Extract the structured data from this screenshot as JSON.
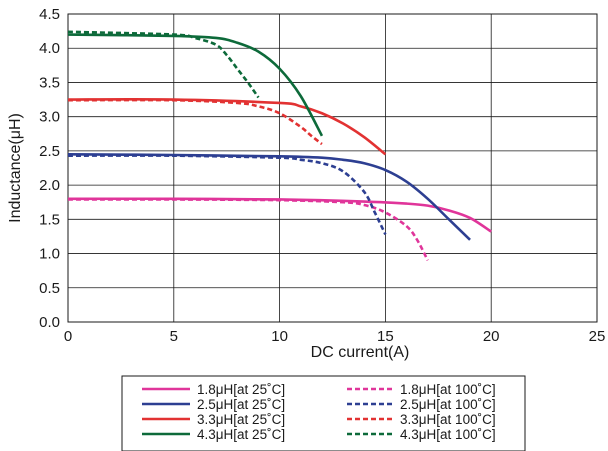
{
  "chart_data": {
    "type": "line",
    "xlabel": "DC current(A)",
    "ylabel": "Inductance(μH)",
    "xlim": [
      0,
      25
    ],
    "ylim": [
      0,
      4.5
    ],
    "xticks": [
      "0",
      "5",
      "10",
      "15",
      "20",
      "25"
    ],
    "yticks": [
      "0.0",
      "0.5",
      "1.0",
      "1.5",
      "2.0",
      "2.5",
      "3.0",
      "3.5",
      "4.0",
      "4.5"
    ],
    "grid": true,
    "legend_position": "bottom",
    "colors": {
      "pink": "#e0359a",
      "blue": "#2d3f92",
      "red": "#e23232",
      "green": "#0d6a3a"
    },
    "series": [
      {
        "name": "1.8μH[at 25˚C]",
        "color": "pink",
        "dash": false,
        "x": [
          0,
          5,
          10,
          14,
          16,
          17,
          18,
          19,
          20
        ],
        "y": [
          1.8,
          1.8,
          1.79,
          1.76,
          1.73,
          1.7,
          1.63,
          1.52,
          1.32
        ]
      },
      {
        "name": "2.5μH[at 25˚C]",
        "color": "blue",
        "dash": false,
        "x": [
          0,
          5,
          10,
          12,
          13,
          14,
          15,
          16,
          17,
          18,
          19
        ],
        "y": [
          2.45,
          2.44,
          2.42,
          2.4,
          2.37,
          2.32,
          2.22,
          2.05,
          1.8,
          1.5,
          1.2
        ]
      },
      {
        "name": "3.3μH[at 25˚C]",
        "color": "red",
        "dash": false,
        "x": [
          0,
          5,
          10,
          11,
          12,
          13,
          14,
          15
        ],
        "y": [
          3.25,
          3.25,
          3.2,
          3.15,
          3.05,
          2.9,
          2.7,
          2.45
        ]
      },
      {
        "name": "4.3μH[at 25˚C]",
        "color": "green",
        "dash": false,
        "x": [
          0,
          5,
          7,
          8,
          9,
          10,
          11,
          12
        ],
        "y": [
          4.2,
          4.18,
          4.15,
          4.08,
          3.95,
          3.7,
          3.3,
          2.72
        ]
      },
      {
        "name": "1.8μH[at 100˚C]",
        "color": "pink",
        "dash": true,
        "x": [
          0,
          5,
          10,
          13,
          14,
          15,
          16,
          16.5,
          17
        ],
        "y": [
          1.79,
          1.79,
          1.78,
          1.75,
          1.71,
          1.6,
          1.4,
          1.2,
          0.9
        ]
      },
      {
        "name": "2.5μH[at 100˚C]",
        "color": "blue",
        "dash": true,
        "x": [
          0,
          5,
          10,
          11,
          12,
          13,
          14,
          14.5,
          15
        ],
        "y": [
          2.43,
          2.43,
          2.4,
          2.37,
          2.32,
          2.2,
          1.9,
          1.6,
          1.28
        ]
      },
      {
        "name": "3.3μH[at 100˚C]",
        "color": "red",
        "dash": true,
        "x": [
          0,
          5,
          8,
          9,
          10,
          11,
          11.5,
          12
        ],
        "y": [
          3.24,
          3.24,
          3.2,
          3.15,
          3.05,
          2.85,
          2.72,
          2.6
        ]
      },
      {
        "name": "4.3μH[at 100˚C]",
        "color": "green",
        "dash": true,
        "x": [
          0,
          5,
          6,
          7,
          7.5,
          8,
          8.5,
          9
        ],
        "y": [
          4.24,
          4.2,
          4.15,
          4.05,
          3.9,
          3.7,
          3.5,
          3.28
        ]
      }
    ]
  }
}
